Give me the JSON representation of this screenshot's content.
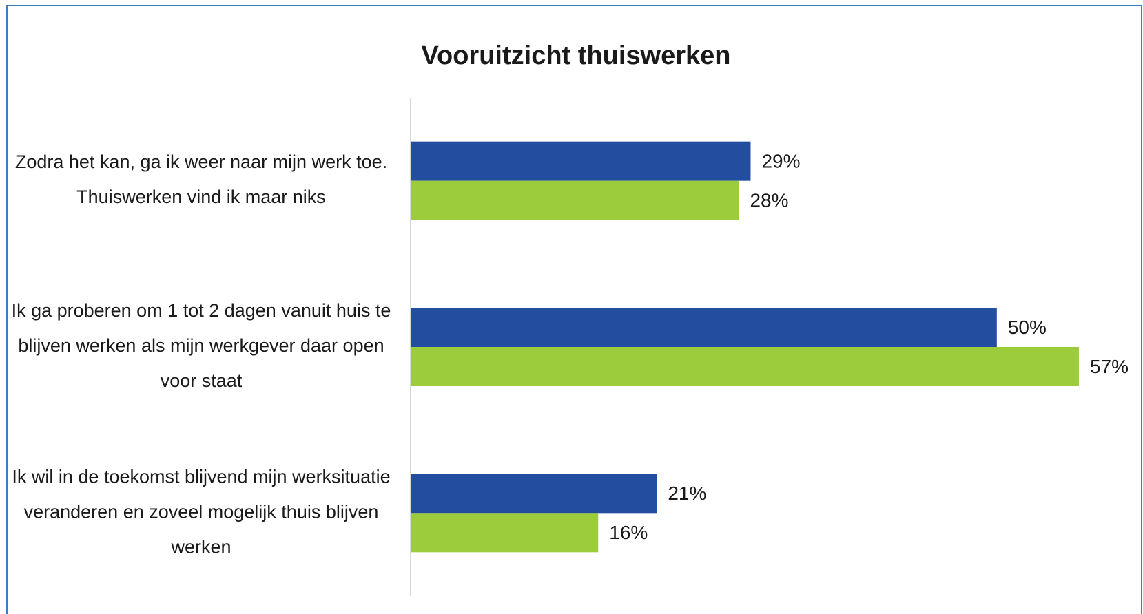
{
  "chart_data": {
    "type": "bar",
    "orientation": "horizontal",
    "title": "Vooruitzicht thuiswerken",
    "categories": [
      "Zodra het kan, ga ik weer naar mijn werk toe. Thuiswerken vind ik maar niks",
      "Ik ga proberen om 1 tot 2 dagen vanuit huis te blijven werken als mijn werkgever daar open voor staat",
      "Ik wil in de toekomst blijvend mijn werksituatie veranderen en zoveel mogelijk thuis blijven werken"
    ],
    "series": [
      {
        "color": "#234ea0",
        "values": [
          29,
          50,
          21
        ],
        "value_labels": [
          "29%",
          "50%",
          "21%"
        ]
      },
      {
        "color": "#9ccb3b",
        "values": [
          28,
          57,
          16
        ],
        "value_labels": [
          "28%",
          "57%",
          "16%"
        ]
      }
    ],
    "xlim": [
      0,
      60
    ],
    "grid": false
  }
}
